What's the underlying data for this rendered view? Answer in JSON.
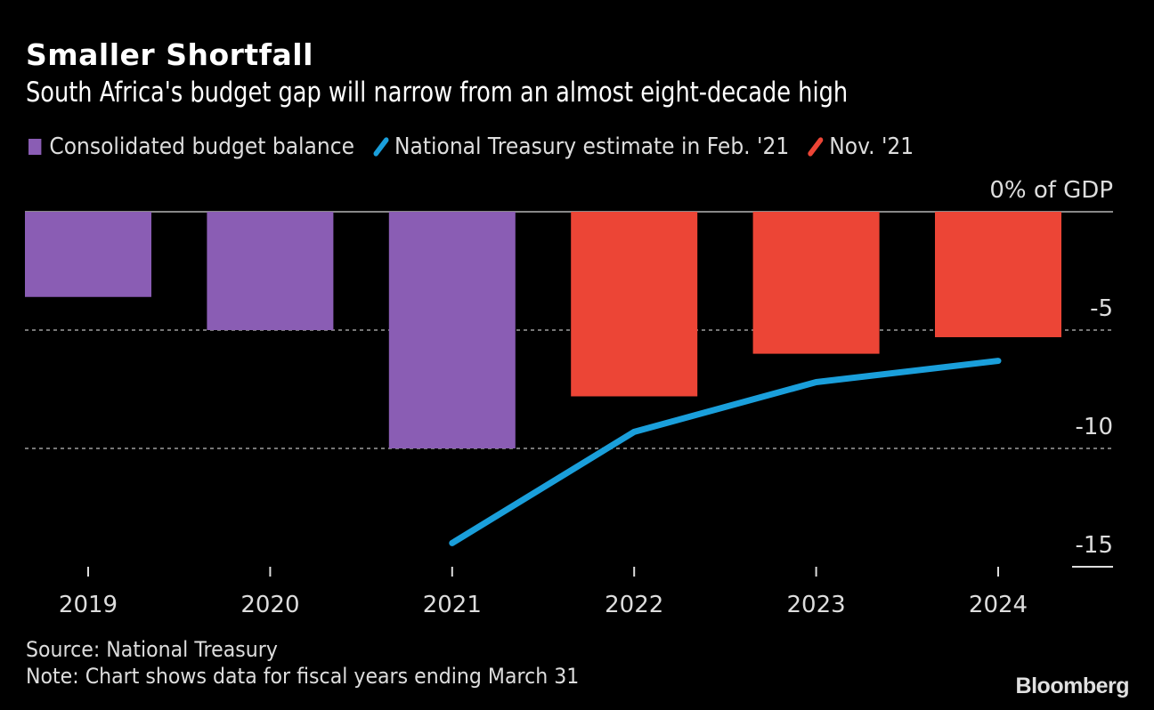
{
  "header": {
    "title": "Smaller Shortfall",
    "subtitle": "South Africa's budget gap will narrow from an almost eight-decade high"
  },
  "footer": {
    "source": "Source: National Treasury",
    "note": "Note: Chart shows data for fiscal years ending March 31",
    "brand": "Bloomberg"
  },
  "colors": {
    "background": "#000000",
    "purple": "#8a5db4",
    "red": "#ec4536",
    "blue": "#1a9fdb",
    "grid": "#777777",
    "text": "#dddddd"
  },
  "chart_data": {
    "type": "bar",
    "title": "Smaller Shortfall",
    "subtitle": "South Africa's budget gap will narrow from an almost eight-decade high",
    "categories": [
      "2019",
      "2020",
      "2021",
      "2022",
      "2023",
      "2024"
    ],
    "ylabel": "% of GDP",
    "ylim": [
      -15,
      0
    ],
    "yticks": [
      0,
      -5,
      -10,
      -15
    ],
    "ytick_labels": [
      "0% of GDP",
      "-5",
      "-10",
      "-15"
    ],
    "grid": true,
    "legend_position": "top-left",
    "series": [
      {
        "name": "Consolidated budget balance",
        "type": "bar",
        "color": "#8a5db4",
        "values": [
          -3.6,
          -5.0,
          -10.0,
          null,
          null,
          null
        ]
      },
      {
        "name": "National Treasury estimate in Feb. '21",
        "type": "line",
        "color": "#1a9fdb",
        "values": [
          null,
          null,
          -14.0,
          -9.3,
          -7.2,
          -6.3
        ]
      },
      {
        "name": "Nov. '21",
        "type": "bar",
        "color": "#ec4536",
        "values": [
          null,
          null,
          null,
          -7.8,
          -6.0,
          -5.3
        ]
      }
    ]
  }
}
